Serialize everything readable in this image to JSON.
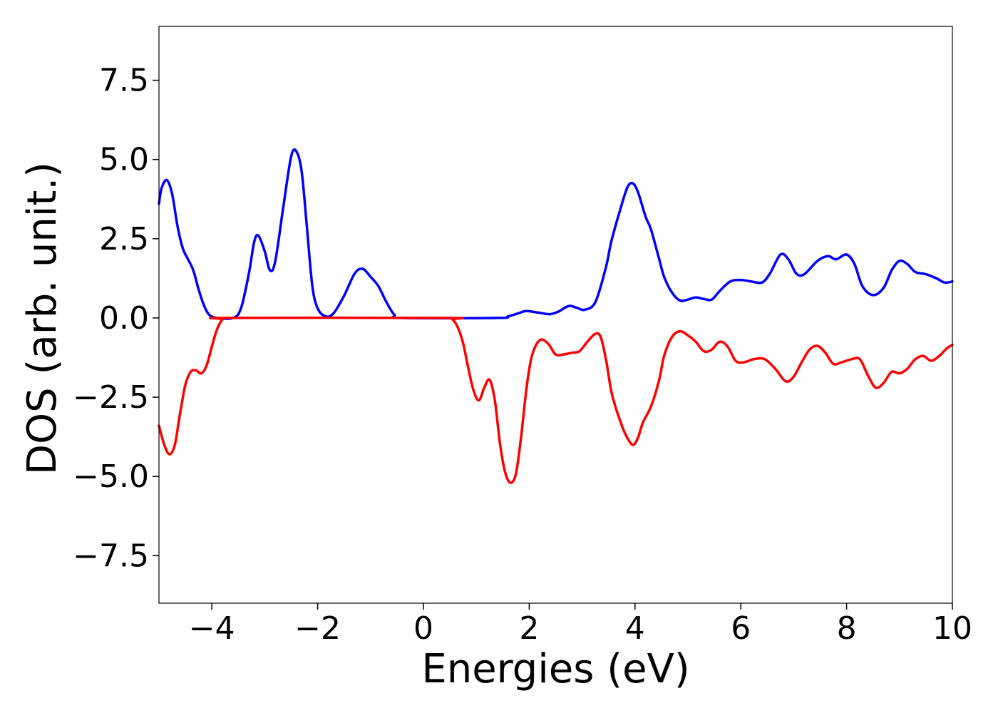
{
  "chart_data": {
    "type": "line",
    "title": "",
    "xlabel": "Energies (eV)",
    "ylabel": "DOS (arb. unit.)",
    "xlim": [
      -5,
      10
    ],
    "ylim": [
      -9,
      9.2
    ],
    "grid": false,
    "legend": "none",
    "x_ticks": [
      -4,
      -2,
      0,
      2,
      4,
      6,
      8,
      10
    ],
    "x_tick_labels": [
      "−4",
      "−2",
      "0",
      "2",
      "4",
      "6",
      "8",
      "10"
    ],
    "y_ticks": [
      7.5,
      5.0,
      2.5,
      0.0,
      -2.5,
      -5.0,
      -7.5
    ],
    "y_tick_labels": [
      "7.5",
      "5.0",
      "2.5",
      "0.0",
      "−2.5",
      "−5.0",
      "−7.5"
    ],
    "series": [
      {
        "color": "#0000ff",
        "points": [
          [
            -5.0,
            3.6
          ],
          [
            -4.95,
            4.1
          ],
          [
            -4.85,
            4.35
          ],
          [
            -4.75,
            3.9
          ],
          [
            -4.65,
            2.9
          ],
          [
            -4.55,
            2.2
          ],
          [
            -4.45,
            1.85
          ],
          [
            -4.35,
            1.5
          ],
          [
            -4.25,
            0.9
          ],
          [
            -4.15,
            0.4
          ],
          [
            -4.05,
            0.1
          ],
          [
            -3.9,
            0.0
          ],
          [
            -3.6,
            0.0
          ],
          [
            -3.45,
            0.3
          ],
          [
            -3.3,
            1.4
          ],
          [
            -3.2,
            2.4
          ],
          [
            -3.12,
            2.6
          ],
          [
            -3.0,
            2.1
          ],
          [
            -2.9,
            1.5
          ],
          [
            -2.8,
            1.8
          ],
          [
            -2.65,
            3.5
          ],
          [
            -2.5,
            5.1
          ],
          [
            -2.4,
            5.25
          ],
          [
            -2.3,
            4.6
          ],
          [
            -2.2,
            2.8
          ],
          [
            -2.1,
            1.0
          ],
          [
            -2.0,
            0.3
          ],
          [
            -1.85,
            0.05
          ],
          [
            -1.7,
            0.15
          ],
          [
            -1.5,
            0.7
          ],
          [
            -1.3,
            1.4
          ],
          [
            -1.15,
            1.55
          ],
          [
            -1.0,
            1.3
          ],
          [
            -0.85,
            1.0
          ],
          [
            -0.7,
            0.5
          ],
          [
            -0.55,
            0.1
          ],
          [
            -0.4,
            0.0
          ],
          [
            1.4,
            0.0
          ],
          [
            1.6,
            0.05
          ],
          [
            1.8,
            0.15
          ],
          [
            1.95,
            0.22
          ],
          [
            2.2,
            0.16
          ],
          [
            2.4,
            0.12
          ],
          [
            2.55,
            0.2
          ],
          [
            2.75,
            0.38
          ],
          [
            2.9,
            0.32
          ],
          [
            3.05,
            0.26
          ],
          [
            3.25,
            0.5
          ],
          [
            3.45,
            1.6
          ],
          [
            3.55,
            2.4
          ],
          [
            3.7,
            3.3
          ],
          [
            3.85,
            4.1
          ],
          [
            3.95,
            4.25
          ],
          [
            4.05,
            4.0
          ],
          [
            4.2,
            3.2
          ],
          [
            4.3,
            2.8
          ],
          [
            4.45,
            1.9
          ],
          [
            4.55,
            1.3
          ],
          [
            4.7,
            0.8
          ],
          [
            4.85,
            0.55
          ],
          [
            5.0,
            0.58
          ],
          [
            5.15,
            0.65
          ],
          [
            5.3,
            0.6
          ],
          [
            5.45,
            0.58
          ],
          [
            5.6,
            0.85
          ],
          [
            5.8,
            1.15
          ],
          [
            6.0,
            1.2
          ],
          [
            6.2,
            1.15
          ],
          [
            6.4,
            1.12
          ],
          [
            6.55,
            1.4
          ],
          [
            6.75,
            2.0
          ],
          [
            6.9,
            1.85
          ],
          [
            7.05,
            1.4
          ],
          [
            7.2,
            1.38
          ],
          [
            7.45,
            1.8
          ],
          [
            7.65,
            1.95
          ],
          [
            7.8,
            1.85
          ],
          [
            8.0,
            2.0
          ],
          [
            8.15,
            1.7
          ],
          [
            8.3,
            1.0
          ],
          [
            8.5,
            0.72
          ],
          [
            8.7,
            0.95
          ],
          [
            8.85,
            1.5
          ],
          [
            9.0,
            1.8
          ],
          [
            9.15,
            1.7
          ],
          [
            9.3,
            1.45
          ],
          [
            9.5,
            1.38
          ],
          [
            9.7,
            1.25
          ],
          [
            9.85,
            1.12
          ],
          [
            10.0,
            1.15
          ]
        ]
      },
      {
        "color": "#ff0000",
        "points": [
          [
            -5.0,
            -3.4
          ],
          [
            -4.9,
            -4.0
          ],
          [
            -4.8,
            -4.3
          ],
          [
            -4.7,
            -4.0
          ],
          [
            -4.6,
            -3.0
          ],
          [
            -4.5,
            -2.1
          ],
          [
            -4.4,
            -1.7
          ],
          [
            -4.3,
            -1.65
          ],
          [
            -4.2,
            -1.75
          ],
          [
            -4.1,
            -1.5
          ],
          [
            -4.0,
            -0.9
          ],
          [
            -3.9,
            -0.35
          ],
          [
            -3.8,
            -0.05
          ],
          [
            -3.7,
            0.0
          ],
          [
            0.4,
            0.0
          ],
          [
            0.55,
            -0.05
          ],
          [
            0.65,
            -0.3
          ],
          [
            0.75,
            -0.8
          ],
          [
            0.85,
            -1.6
          ],
          [
            0.95,
            -2.3
          ],
          [
            1.05,
            -2.6
          ],
          [
            1.15,
            -2.2
          ],
          [
            1.25,
            -1.95
          ],
          [
            1.35,
            -2.6
          ],
          [
            1.45,
            -4.0
          ],
          [
            1.55,
            -4.9
          ],
          [
            1.65,
            -5.2
          ],
          [
            1.75,
            -4.9
          ],
          [
            1.85,
            -3.7
          ],
          [
            1.95,
            -2.2
          ],
          [
            2.05,
            -1.2
          ],
          [
            2.2,
            -0.7
          ],
          [
            2.35,
            -0.8
          ],
          [
            2.5,
            -1.15
          ],
          [
            2.65,
            -1.15
          ],
          [
            2.8,
            -1.1
          ],
          [
            2.95,
            -1.05
          ],
          [
            3.1,
            -0.75
          ],
          [
            3.25,
            -0.5
          ],
          [
            3.35,
            -0.6
          ],
          [
            3.45,
            -1.3
          ],
          [
            3.55,
            -2.3
          ],
          [
            3.65,
            -2.9
          ],
          [
            3.8,
            -3.6
          ],
          [
            3.95,
            -4.0
          ],
          [
            4.05,
            -3.8
          ],
          [
            4.15,
            -3.3
          ],
          [
            4.3,
            -2.8
          ],
          [
            4.45,
            -2.0
          ],
          [
            4.55,
            -1.2
          ],
          [
            4.7,
            -0.6
          ],
          [
            4.85,
            -0.42
          ],
          [
            5.0,
            -0.55
          ],
          [
            5.15,
            -0.75
          ],
          [
            5.3,
            -1.05
          ],
          [
            5.45,
            -1.0
          ],
          [
            5.6,
            -0.75
          ],
          [
            5.75,
            -0.9
          ],
          [
            5.9,
            -1.35
          ],
          [
            6.05,
            -1.4
          ],
          [
            6.25,
            -1.3
          ],
          [
            6.45,
            -1.3
          ],
          [
            6.65,
            -1.6
          ],
          [
            6.85,
            -2.0
          ],
          [
            7.0,
            -1.85
          ],
          [
            7.15,
            -1.4
          ],
          [
            7.3,
            -1.0
          ],
          [
            7.45,
            -0.88
          ],
          [
            7.6,
            -1.1
          ],
          [
            7.75,
            -1.45
          ],
          [
            7.9,
            -1.4
          ],
          [
            8.1,
            -1.3
          ],
          [
            8.25,
            -1.3
          ],
          [
            8.4,
            -1.8
          ],
          [
            8.55,
            -2.2
          ],
          [
            8.7,
            -2.05
          ],
          [
            8.85,
            -1.7
          ],
          [
            9.0,
            -1.75
          ],
          [
            9.15,
            -1.6
          ],
          [
            9.3,
            -1.3
          ],
          [
            9.45,
            -1.2
          ],
          [
            9.6,
            -1.35
          ],
          [
            9.75,
            -1.2
          ],
          [
            9.9,
            -0.95
          ],
          [
            10.0,
            -0.85
          ]
        ]
      }
    ]
  }
}
